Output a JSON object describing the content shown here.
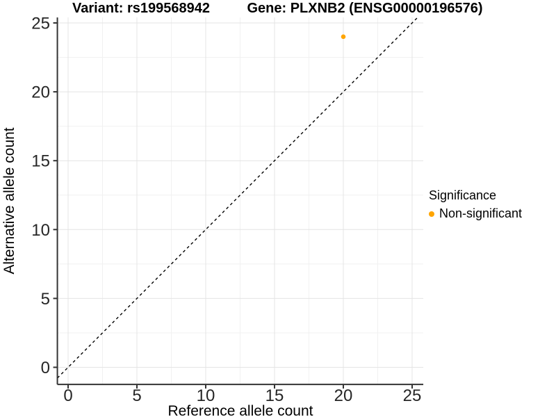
{
  "chart_data": {
    "type": "scatter",
    "titles": {
      "left": "Variant: rs199568942",
      "right": "Gene: PLXNB2 (ENSG00000196576)"
    },
    "xlabel": "Reference allele count",
    "ylabel": "Alternative allele count",
    "xlim": [
      -0.78,
      25.81
    ],
    "ylim": [
      -1.24,
      25.4
    ],
    "xticks": [
      0,
      5,
      10,
      15,
      20,
      25
    ],
    "yticks": [
      0,
      5,
      10,
      15,
      20,
      25
    ],
    "x_minor_ticks": [
      2.5,
      7.5,
      12.5,
      17.5,
      22.5
    ],
    "y_minor_ticks": [
      2.5,
      7.5,
      12.5,
      17.5,
      22.5
    ],
    "grid": "major+minor",
    "points": [
      {
        "x": 20,
        "y": 24,
        "series": "Non-significant",
        "color": "#FFA500"
      }
    ],
    "identity_line": {
      "equation": "y = x",
      "style": "dashed",
      "color": "#000000"
    },
    "legend": {
      "title": "Significance",
      "position": "right",
      "entries": [
        {
          "label": "Non-significant",
          "color": "#FFA500"
        }
      ]
    },
    "colors": {
      "background": "#FFFFFF",
      "grid_major": "#E4E4E4",
      "grid_minor": "#F1F1F1",
      "axis_line": "#333333",
      "tick_label": "#262626",
      "title_text": "#000000"
    }
  }
}
